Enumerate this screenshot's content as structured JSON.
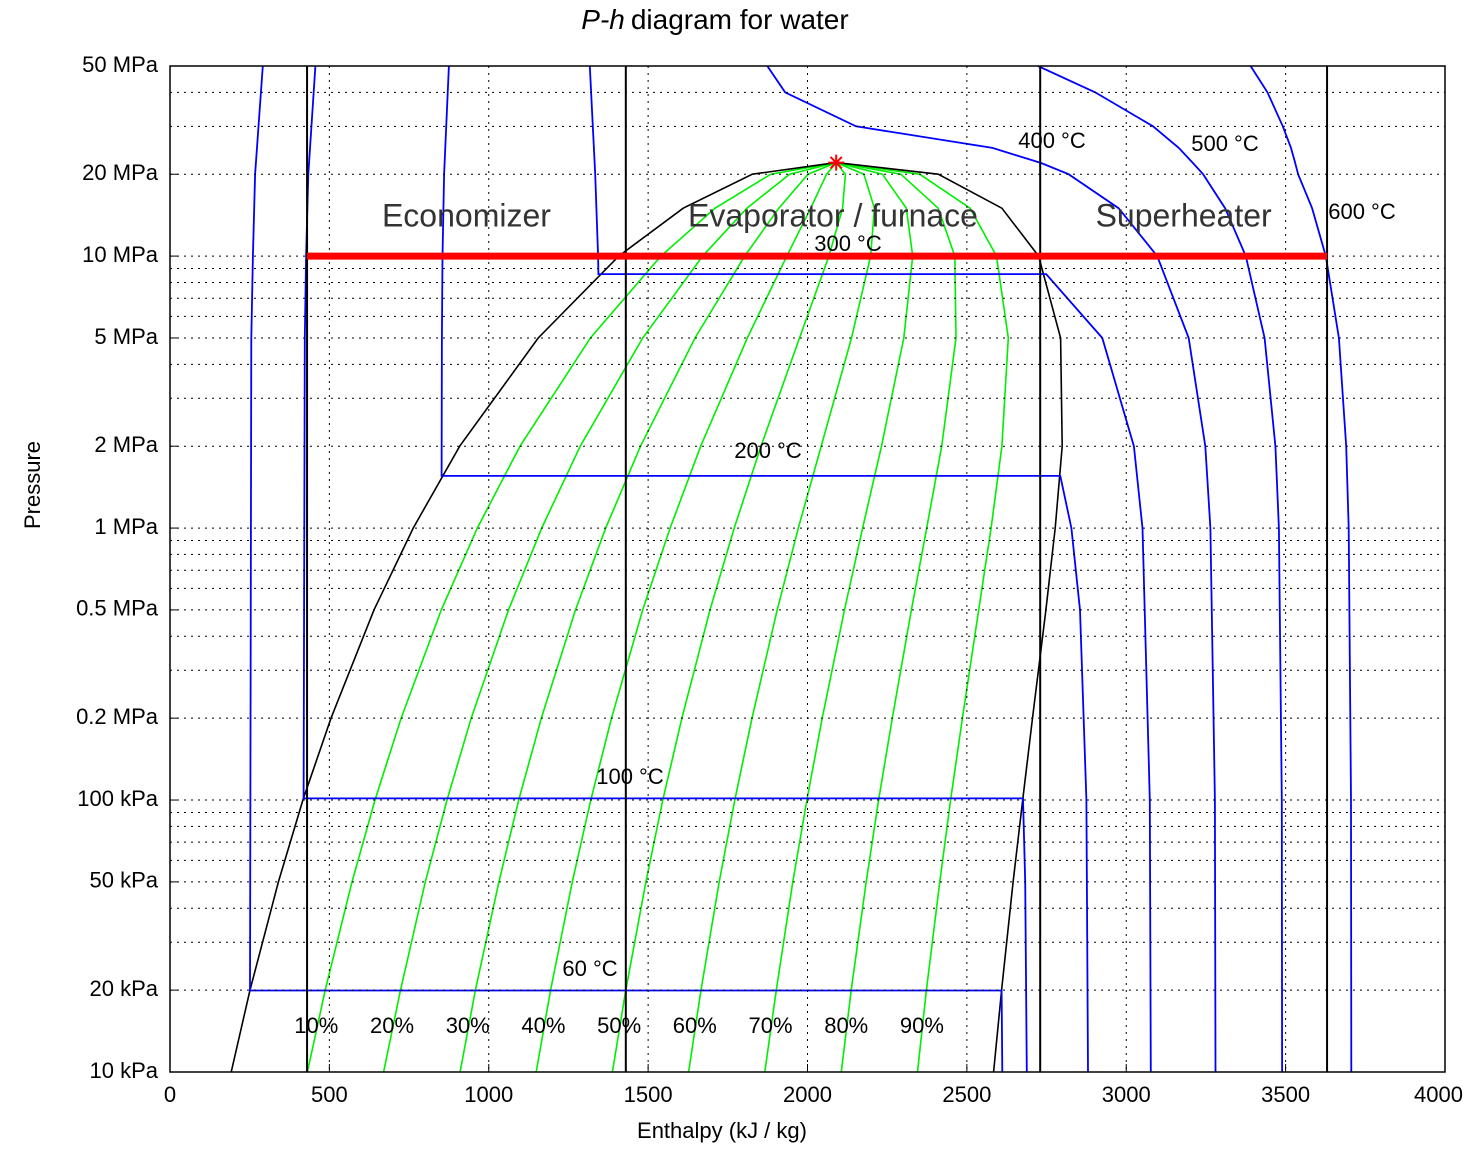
{
  "chart_data": {
    "type": "line",
    "title": {
      "symbol": "P-h",
      "text": "diagram for water"
    },
    "xlabel": "Enthalpy (kJ / kg)",
    "ylabel": "Pressure",
    "xlim": [
      0,
      4000
    ],
    "xticks": [
      0,
      500,
      1000,
      1500,
      2000,
      2500,
      3000,
      3500,
      4000
    ],
    "ylim": [
      10,
      50000
    ],
    "yscale": "log",
    "yticks": [
      {
        "value": 10,
        "label": "10 kPa"
      },
      {
        "value": 20,
        "label": "20 kPa"
      },
      {
        "value": 50,
        "label": "50 kPa"
      },
      {
        "value": 100,
        "label": "100 kPa"
      },
      {
        "value": 200,
        "label": "0.2 MPa"
      },
      {
        "value": 500,
        "label": "0.5 MPa"
      },
      {
        "value": 1000,
        "label": "1 MPa"
      },
      {
        "value": 2000,
        "label": "2 MPa"
      },
      {
        "value": 5000,
        "label": "5 MPa"
      },
      {
        "value": 10000,
        "label": "10 MPa"
      },
      {
        "value": 20000,
        "label": "20 MPa"
      },
      {
        "value": 50000,
        "label": "50 MPa"
      }
    ],
    "yminor_grid": [
      30,
      40,
      60,
      70,
      80,
      90,
      300,
      400,
      600,
      700,
      800,
      900,
      3000,
      4000,
      6000,
      7000,
      8000,
      9000,
      30000,
      40000
    ],
    "grid": true,
    "pressures": [
      10,
      20,
      50,
      100,
      200,
      500,
      1000,
      2000,
      5000,
      10000,
      15000,
      20000,
      22064
    ],
    "saturation": {
      "color": "#000000",
      "h_liquid": [
        192,
        251,
        340,
        417,
        505,
        640,
        763,
        909,
        1155,
        1408,
        1610,
        1827,
        2090
      ],
      "h_vapor": [
        2584,
        2609,
        2645,
        2675,
        2706,
        2748,
        2777,
        2799,
        2794,
        2725,
        2610,
        2410,
        2090
      ]
    },
    "critical_point": {
      "h": 2090,
      "p": 22064,
      "color": "#ff0000"
    },
    "quality_color": "#00ee00",
    "quality_lines": [
      {
        "name": "10%",
        "h": [
          431,
          487,
          571,
          643,
          725,
          851,
          964,
          1098,
          1319,
          1540,
          1710,
          1885,
          2090
        ]
      },
      {
        "name": "20%",
        "h": [
          670,
          723,
          801,
          869,
          945,
          1062,
          1166,
          1287,
          1483,
          1671,
          1810,
          1944,
          2090
        ]
      },
      {
        "name": "30%",
        "h": [
          910,
          958,
          1032,
          1094,
          1165,
          1272,
          1367,
          1476,
          1647,
          1803,
          1910,
          2002,
          2090
        ]
      },
      {
        "name": "40%",
        "h": [
          1149,
          1194,
          1262,
          1320,
          1385,
          1483,
          1569,
          1665,
          1811,
          1935,
          2010,
          2060,
          2090
        ]
      },
      {
        "name": "50%",
        "h": [
          1388,
          1430,
          1493,
          1546,
          1606,
          1694,
          1770,
          1854,
          1975,
          2067,
          2110,
          2119,
          2090
        ]
      },
      {
        "name": "60%",
        "h": [
          1627,
          1666,
          1723,
          1772,
          1826,
          1905,
          1971,
          2043,
          2138,
          2198,
          2210,
          2177,
          2090
        ]
      },
      {
        "name": "70%",
        "h": [
          1866,
          1902,
          1954,
          1998,
          2046,
          2116,
          2173,
          2232,
          2302,
          2330,
          2310,
          2235,
          2090
        ]
      },
      {
        "name": "80%",
        "h": [
          2106,
          2137,
          2184,
          2223,
          2266,
          2326,
          2374,
          2421,
          2466,
          2462,
          2410,
          2293,
          2090
        ]
      },
      {
        "name": "90%",
        "h": [
          2345,
          2373,
          2415,
          2449,
          2486,
          2537,
          2576,
          2610,
          2630,
          2593,
          2510,
          2352,
          2090
        ]
      }
    ],
    "isotherm_color": "#0000ff",
    "isotherms": [
      {
        "name": "60 °C",
        "p": [
          50000,
          20000,
          10000,
          5000,
          19.94,
          19.94,
          10
        ],
        "h": [
          291,
          267,
          260,
          255,
          251,
          2609,
          2611
        ]
      },
      {
        "name": "100 °C",
        "p": [
          50000,
          20000,
          10000,
          5000,
          101.4,
          101.4,
          50,
          10
        ],
        "h": [
          456,
          434,
          427,
          423,
          419,
          2676,
          2683,
          2688
        ]
      },
      {
        "name": "200 °C",
        "p": [
          50000,
          20000,
          10000,
          5000,
          1555,
          1555,
          1000,
          500,
          100,
          10
        ],
        "h": [
          875,
          860,
          855,
          853,
          852,
          2793,
          2828,
          2855,
          2875,
          2880
        ]
      },
      {
        "name": "300 °C",
        "p": [
          50000,
          20000,
          10000,
          8588,
          8588,
          5000,
          2000,
          1000,
          100,
          10
        ],
        "h": [
          1317,
          1334,
          1343,
          1344,
          2749,
          2925,
          3024,
          3051,
          3074,
          3077
        ]
      },
      {
        "name": "400 °C",
        "p": [
          50000,
          40000,
          30000,
          25000,
          22000,
          20000,
          15000,
          10000,
          5000,
          2000,
          1000,
          100,
          10
        ],
        "h": [
          1874,
          1930,
          2152,
          2580,
          2733,
          2819,
          2976,
          3097,
          3196,
          3248,
          3264,
          3278,
          3280
        ]
      },
      {
        "name": "500 °C",
        "p": [
          50000,
          40000,
          30000,
          25000,
          22000,
          20000,
          15000,
          10000,
          5000,
          2000,
          1000,
          100,
          10
        ],
        "h": [
          2723,
          2903,
          3084,
          3165,
          3209,
          3241,
          3310,
          3375,
          3434,
          3468,
          3479,
          3488,
          3489
        ]
      },
      {
        "name": "600 °C",
        "p": [
          50000,
          40000,
          30000,
          25000,
          22000,
          20000,
          15000,
          10000,
          5000,
          2000,
          1000,
          100,
          10
        ],
        "h": [
          3390,
          3443,
          3491,
          3517,
          3530,
          3539,
          3583,
          3626,
          3667,
          3690,
          3698,
          3705,
          3706
        ]
      }
    ],
    "process": {
      "pressure": 10000,
      "color": "#ff0000",
      "boundaries": [
        430,
        1430,
        2730,
        3630
      ],
      "regions": [
        "Economizer",
        "Evaporator / furnace",
        "Superheater"
      ]
    }
  }
}
